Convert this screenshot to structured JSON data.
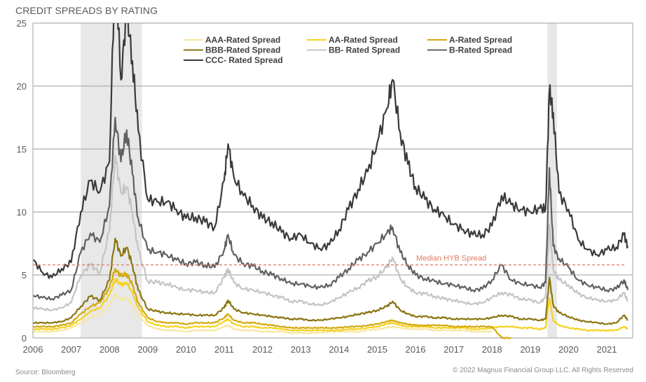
{
  "chart_data": {
    "type": "line",
    "title": "CREDIT SPREADS BY RATING",
    "xlabel": "",
    "ylabel": "",
    "xlim": [
      2006,
      2021.6
    ],
    "ylim": [
      0,
      25
    ],
    "yticks": [
      0,
      5,
      10,
      15,
      20,
      25
    ],
    "xticks": [
      "2006",
      "2007",
      "2008",
      "2009",
      "2010",
      "2011",
      "2012",
      "2013",
      "2014",
      "2015",
      "2016",
      "2017",
      "2018",
      "2019",
      "2020",
      "2021"
    ],
    "grid": "horizontal",
    "legend_placement": "top-center",
    "recession_bands": [
      [
        2007.25,
        2008.85
      ],
      [
        2019.45,
        2019.7
      ]
    ],
    "reference_line": {
      "label": "Median HYB Spread",
      "value": 5.8,
      "color": "#e07a5f"
    },
    "x": [
      2006.0,
      2006.25,
      2006.5,
      2006.75,
      2007.0,
      2007.25,
      2007.5,
      2007.75,
      2008.0,
      2008.15,
      2008.3,
      2008.45,
      2008.6,
      2008.75,
      2009.0,
      2009.25,
      2009.5,
      2009.75,
      2010.0,
      2010.25,
      2010.5,
      2010.75,
      2011.0,
      2011.1,
      2011.25,
      2011.5,
      2011.75,
      2012.0,
      2012.25,
      2012.5,
      2012.75,
      2013.0,
      2013.25,
      2013.5,
      2013.75,
      2014.0,
      2014.25,
      2014.5,
      2014.75,
      2015.0,
      2015.25,
      2015.4,
      2015.6,
      2015.8,
      2016.0,
      2016.25,
      2016.5,
      2016.75,
      2017.0,
      2017.25,
      2017.5,
      2017.75,
      2018.0,
      2018.25,
      2018.5,
      2018.75,
      2019.0,
      2019.25,
      2019.4,
      2019.5,
      2019.6,
      2019.75,
      2020.0,
      2020.25,
      2020.5,
      2020.75,
      2021.0,
      2021.25,
      2021.45,
      2021.55
    ],
    "series": [
      {
        "name": "AAA-Rated Spread",
        "color": "#f7e7a1",
        "values": [
          0.5,
          0.5,
          0.5,
          0.6,
          0.8,
          1.2,
          1.6,
          1.9,
          2.6,
          3.5,
          3.0,
          3.2,
          2.6,
          1.8,
          1.0,
          0.7,
          0.6,
          0.6,
          0.5,
          0.6,
          0.6,
          0.6,
          0.9,
          1.0,
          0.7,
          0.6,
          0.6,
          0.5,
          0.5,
          0.5,
          0.4,
          0.4,
          0.4,
          0.4,
          0.5,
          0.5,
          0.5,
          0.5,
          0.6,
          0.7,
          0.8,
          0.9,
          0.8,
          0.7,
          0.7,
          0.7,
          0.6,
          0.6,
          0.6,
          0.6,
          0.5,
          0.5,
          0.5,
          null,
          null,
          null,
          null,
          null,
          null,
          null,
          null,
          null,
          null,
          null,
          null,
          null,
          null,
          null,
          null,
          null
        ]
      },
      {
        "name": "AA-Rated Spread",
        "color": "#f5d21f",
        "values": [
          0.7,
          0.7,
          0.7,
          0.8,
          1.0,
          1.5,
          2.1,
          2.4,
          3.4,
          4.7,
          4.2,
          4.4,
          3.6,
          2.4,
          1.3,
          1.0,
          0.9,
          0.9,
          0.8,
          0.9,
          0.9,
          0.9,
          1.3,
          1.5,
          1.1,
          0.9,
          0.9,
          0.8,
          0.8,
          0.7,
          0.6,
          0.6,
          0.6,
          0.6,
          0.6,
          0.6,
          0.7,
          0.7,
          0.8,
          0.9,
          1.1,
          1.2,
          1.0,
          0.9,
          0.9,
          0.9,
          0.8,
          0.8,
          0.8,
          0.8,
          0.7,
          0.7,
          0.8,
          0.9,
          0.9,
          0.8,
          0.8,
          0.7,
          0.8,
          3.2,
          1.4,
          1.0,
          0.8,
          0.7,
          0.6,
          0.6,
          0.6,
          0.6,
          0.9,
          0.7
        ]
      },
      {
        "name": "A-Rated Spread",
        "color": "#d4a90f",
        "values": [
          0.9,
          0.9,
          0.9,
          1.0,
          1.2,
          1.9,
          2.5,
          2.8,
          4.0,
          5.5,
          4.9,
          5.1,
          4.2,
          2.8,
          1.6,
          1.3,
          1.2,
          1.2,
          1.1,
          1.2,
          1.2,
          1.2,
          1.6,
          1.9,
          1.4,
          1.2,
          1.2,
          1.1,
          1.0,
          0.9,
          0.8,
          0.8,
          0.8,
          0.8,
          0.8,
          0.8,
          0.9,
          0.9,
          1.0,
          1.1,
          1.3,
          1.4,
          1.2,
          1.1,
          1.0,
          1.0,
          1.0,
          1.0,
          0.9,
          0.9,
          0.9,
          0.9,
          0.9,
          0.0,
          0.0,
          null,
          null,
          null,
          null,
          null,
          null,
          null,
          null,
          null,
          null,
          null,
          null,
          null,
          null,
          null
        ]
      },
      {
        "name": "BBB-Rated Spread",
        "color": "#8a7410",
        "values": [
          1.2,
          1.2,
          1.2,
          1.3,
          1.6,
          2.5,
          3.3,
          3.0,
          4.6,
          7.9,
          6.5,
          7.2,
          5.8,
          3.8,
          2.3,
          2.1,
          2.0,
          1.9,
          1.9,
          1.8,
          1.8,
          1.8,
          2.4,
          3.0,
          2.3,
          2.0,
          1.9,
          1.8,
          1.7,
          1.6,
          1.5,
          1.5,
          1.4,
          1.4,
          1.5,
          1.6,
          1.7,
          1.9,
          2.0,
          2.2,
          2.5,
          2.9,
          2.2,
          1.9,
          1.7,
          1.7,
          1.6,
          1.6,
          1.5,
          1.5,
          1.5,
          1.5,
          1.6,
          1.8,
          1.7,
          1.5,
          1.5,
          1.4,
          1.5,
          4.8,
          2.6,
          2.0,
          1.7,
          1.4,
          1.3,
          1.2,
          1.1,
          1.2,
          1.8,
          1.4
        ]
      },
      {
        "name": "BB- Rated Spread",
        "color": "#c4c4c4",
        "values": [
          2.4,
          2.3,
          2.2,
          2.4,
          2.8,
          5.0,
          5.8,
          5.2,
          8.5,
          14.5,
          11.5,
          12.0,
          10.0,
          7.0,
          4.5,
          4.4,
          4.3,
          4.0,
          3.8,
          3.8,
          3.6,
          3.6,
          4.8,
          5.5,
          4.4,
          3.9,
          3.8,
          3.6,
          3.4,
          3.2,
          2.9,
          2.9,
          2.7,
          2.6,
          2.8,
          3.2,
          3.6,
          4.0,
          4.5,
          4.9,
          5.6,
          6.4,
          4.7,
          4.0,
          3.6,
          3.5,
          3.3,
          3.1,
          3.0,
          2.8,
          2.7,
          2.8,
          3.2,
          3.6,
          3.4,
          3.1,
          3.0,
          2.8,
          3.2,
          9.0,
          5.5,
          4.6,
          4.2,
          3.5,
          3.2,
          3.0,
          2.9,
          3.0,
          3.6,
          2.9
        ]
      },
      {
        "name": "B-Rated Spread",
        "color": "#606060",
        "values": [
          3.4,
          3.2,
          3.1,
          3.4,
          3.8,
          6.8,
          8.3,
          7.6,
          10.5,
          17.5,
          14.0,
          16.5,
          13.0,
          9.5,
          7.0,
          6.8,
          6.6,
          6.2,
          5.9,
          6.0,
          5.8,
          5.6,
          7.0,
          8.2,
          6.6,
          5.9,
          5.7,
          5.3,
          5.0,
          4.7,
          4.3,
          4.3,
          4.1,
          4.0,
          4.2,
          4.8,
          5.5,
          6.2,
          6.8,
          7.5,
          8.3,
          8.8,
          6.8,
          5.8,
          5.0,
          4.7,
          4.5,
          4.3,
          4.2,
          4.0,
          3.8,
          3.9,
          4.6,
          5.8,
          4.6,
          4.3,
          4.2,
          4.0,
          4.4,
          13.5,
          7.3,
          6.3,
          5.6,
          4.6,
          4.2,
          4.0,
          3.8,
          3.9,
          4.6,
          3.8
        ]
      },
      {
        "name": "CCC- Rated Spread",
        "color": "#3a3a3a",
        "values": [
          6.2,
          5.2,
          4.8,
          5.5,
          6.0,
          10.0,
          12.5,
          11.6,
          14.0,
          30.0,
          20.5,
          26.0,
          22.0,
          16.5,
          11.0,
          10.8,
          10.8,
          10.2,
          9.5,
          9.6,
          9.2,
          8.8,
          12.5,
          15.4,
          12.8,
          11.3,
          10.5,
          9.5,
          9.2,
          8.4,
          7.9,
          8.2,
          7.5,
          7.1,
          7.4,
          8.6,
          10.2,
          11.8,
          13.2,
          15.5,
          18.2,
          20.5,
          16.3,
          13.8,
          12.0,
          11.0,
          10.2,
          9.7,
          9.0,
          8.6,
          8.2,
          8.2,
          8.9,
          11.3,
          10.6,
          10.2,
          10.0,
          10.3,
          10.2,
          19.6,
          17.9,
          11.5,
          10.2,
          7.8,
          7.0,
          6.6,
          7.0,
          7.2,
          8.2,
          7.3
        ]
      }
    ]
  },
  "labels": {
    "title": "CREDIT SPREADS BY RATING",
    "source": "Source: Bloomberg",
    "copyright": "© 2022 Magnus Financial Group LLC. All Rights Reserved",
    "median_label": "Median HYB Spread"
  }
}
